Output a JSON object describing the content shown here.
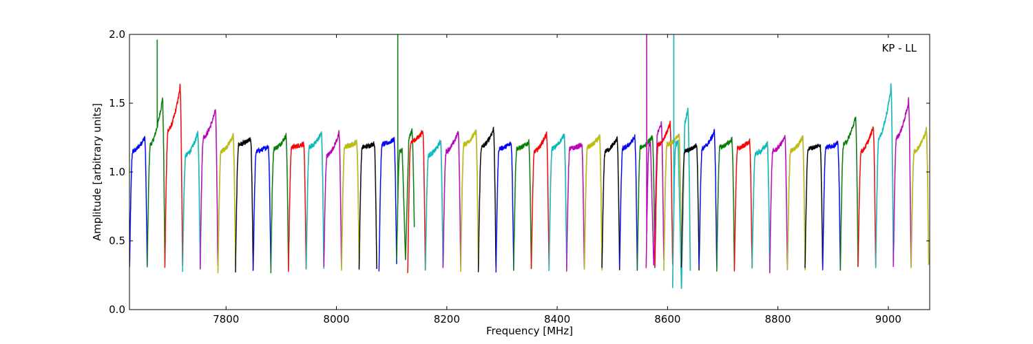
{
  "chart_data": {
    "type": "line",
    "title": "",
    "annotation": "KP - LL",
    "xlabel": "Frequency [MHz]",
    "ylabel": "Amplitude [arbitrary units]",
    "xlim": [
      7625,
      9075
    ],
    "ylim": [
      0.0,
      2.0
    ],
    "xticks": [
      7800,
      8000,
      8200,
      8400,
      8600,
      8800,
      9000
    ],
    "yticks": [
      0.0,
      0.5,
      1.0,
      1.5,
      2.0
    ],
    "xtick_labels": [
      "7800",
      "8000",
      "8200",
      "8400",
      "8600",
      "8800",
      "9000"
    ],
    "ytick_labels": [
      "0.0",
      "0.5",
      "1.0",
      "1.5",
      "2.0"
    ],
    "grid": false,
    "legend": "none",
    "channel_width_mhz": 32,
    "series": [
      {
        "start": 7625,
        "color": "#0000ff",
        "edge_low": 0.3,
        "edge_high": 0.31,
        "level": 1.15,
        "peak": 1.26
      },
      {
        "start": 7657,
        "color": "#008000",
        "edge_low": 0.3,
        "edge_high": 0.34,
        "level": 1.2,
        "peak": 1.55,
        "spike_x": 7675,
        "spike_y": 1.96
      },
      {
        "start": 7689,
        "color": "#ff0000",
        "edge_low": 0.31,
        "edge_high": 0.33,
        "level": 1.3,
        "peak": 1.63
      },
      {
        "start": 7721,
        "color": "#00bfbf",
        "edge_low": 0.29,
        "edge_high": 0.31,
        "level": 1.12,
        "peak": 1.29
      },
      {
        "start": 7753,
        "color": "#bf00bf",
        "edge_low": 0.3,
        "edge_high": 0.31,
        "level": 1.25,
        "peak": 1.46
      },
      {
        "start": 7785,
        "color": "#bfbf00",
        "edge_low": 0.27,
        "edge_high": 0.3,
        "level": 1.15,
        "peak": 1.27
      },
      {
        "start": 7817,
        "color": "#000000",
        "edge_low": 0.28,
        "edge_high": 0.3,
        "level": 1.2,
        "peak": 1.24
      },
      {
        "start": 7849,
        "color": "#0000ff",
        "edge_low": 0.28,
        "edge_high": 0.3,
        "level": 1.15,
        "peak": 1.19
      },
      {
        "start": 7881,
        "color": "#008000",
        "edge_low": 0.27,
        "edge_high": 0.29,
        "level": 1.17,
        "peak": 1.27
      },
      {
        "start": 7913,
        "color": "#ff0000",
        "edge_low": 0.29,
        "edge_high": 0.3,
        "level": 1.18,
        "peak": 1.21
      },
      {
        "start": 7945,
        "color": "#00bfbf",
        "edge_low": 0.29,
        "edge_high": 0.3,
        "level": 1.18,
        "peak": 1.29
      },
      {
        "start": 7977,
        "color": "#bf00bf",
        "edge_low": 0.3,
        "edge_high": 0.3,
        "level": 1.12,
        "peak": 1.29
      },
      {
        "start": 8009,
        "color": "#bfbf00",
        "edge_low": 0.29,
        "edge_high": 0.3,
        "level": 1.18,
        "peak": 1.22
      },
      {
        "start": 8041,
        "color": "#000000",
        "edge_low": 0.29,
        "edge_high": 0.3,
        "level": 1.18,
        "peak": 1.21
      },
      {
        "start": 8077,
        "color": "#0000ff",
        "edge_low": 0.29,
        "edge_high": 0.32,
        "level": 1.2,
        "peak": 1.24
      },
      {
        "start": 8109,
        "color": "#008000",
        "edge_low": 0.36,
        "edge_high": 0.6,
        "level": 1.15,
        "peak": 1.31,
        "spike_x": 8111,
        "spike_y": 2.0,
        "dip_x": 8125,
        "dip_y": 0.36
      },
      {
        "start": 8129,
        "color": "#ff0000",
        "edge_low": 0.26,
        "edge_high": 0.27,
        "level": 1.22,
        "peak": 1.3
      },
      {
        "start": 8161,
        "color": "#00bfbf",
        "edge_low": 0.29,
        "edge_high": 0.3,
        "level": 1.12,
        "peak": 1.23
      },
      {
        "start": 8193,
        "color": "#bf00bf",
        "edge_low": 0.29,
        "edge_high": 0.3,
        "level": 1.15,
        "peak": 1.3
      },
      {
        "start": 8225,
        "color": "#bfbf00",
        "edge_low": 0.29,
        "edge_high": 0.3,
        "level": 1.2,
        "peak": 1.3
      },
      {
        "start": 8257,
        "color": "#000000",
        "edge_low": 0.28,
        "edge_high": 0.3,
        "level": 1.18,
        "peak": 1.32
      },
      {
        "start": 8289,
        "color": "#0000ff",
        "edge_low": 0.28,
        "edge_high": 0.3,
        "level": 1.17,
        "peak": 1.21
      },
      {
        "start": 8321,
        "color": "#008000",
        "edge_low": 0.29,
        "edge_high": 0.3,
        "level": 1.17,
        "peak": 1.22
      },
      {
        "start": 8353,
        "color": "#ff0000",
        "edge_low": 0.29,
        "edge_high": 0.3,
        "level": 1.15,
        "peak": 1.29
      },
      {
        "start": 8385,
        "color": "#00bfbf",
        "edge_low": 0.28,
        "edge_high": 0.3,
        "level": 1.17,
        "peak": 1.28
      },
      {
        "start": 8417,
        "color": "#bf00bf",
        "edge_low": 0.29,
        "edge_high": 0.3,
        "level": 1.17,
        "peak": 1.2
      },
      {
        "start": 8449,
        "color": "#bfbf00",
        "edge_low": 0.29,
        "edge_high": 0.3,
        "level": 1.18,
        "peak": 1.26
      },
      {
        "start": 8481,
        "color": "#000000",
        "edge_low": 0.29,
        "edge_high": 0.3,
        "level": 1.15,
        "peak": 1.25
      },
      {
        "start": 8513,
        "color": "#0000ff",
        "edge_low": 0.29,
        "edge_high": 0.3,
        "level": 1.17,
        "peak": 1.26
      },
      {
        "start": 8545,
        "color": "#008000",
        "edge_low": 0.29,
        "edge_high": 0.3,
        "level": 1.18,
        "peak": 1.26
      },
      {
        "start": 8561,
        "color": "#bf00bf",
        "edge_low": 0.3,
        "edge_high": 0.35,
        "level": 1.2,
        "peak": 1.36,
        "spike_x": 8562,
        "spike_y": 2.0,
        "dip_x": 8575,
        "dip_y": 0.3
      },
      {
        "start": 8577,
        "color": "#ff0000",
        "edge_low": 0.3,
        "edge_high": 0.32,
        "level": 1.2,
        "peak": 1.36
      },
      {
        "start": 8593,
        "color": "#bfbf00",
        "edge_low": 0.28,
        "edge_high": 0.3,
        "level": 1.2,
        "peak": 1.27
      },
      {
        "start": 8609,
        "color": "#00bfbf",
        "edge_low": 0.15,
        "edge_high": 0.28,
        "level": 1.2,
        "peak": 1.47,
        "spike_x": 8611,
        "spike_y": 2.0,
        "dip_x": 8625,
        "dip_y": 0.15
      },
      {
        "start": 8625,
        "color": "#000000",
        "edge_low": 0.29,
        "edge_high": 0.3,
        "level": 1.15,
        "peak": 1.2
      },
      {
        "start": 8657,
        "color": "#0000ff",
        "edge_low": 0.29,
        "edge_high": 0.3,
        "level": 1.17,
        "peak": 1.3
      },
      {
        "start": 8689,
        "color": "#008000",
        "edge_low": 0.29,
        "edge_high": 0.3,
        "level": 1.18,
        "peak": 1.24
      },
      {
        "start": 8721,
        "color": "#ff0000",
        "edge_low": 0.29,
        "edge_high": 0.3,
        "level": 1.17,
        "peak": 1.23
      },
      {
        "start": 8753,
        "color": "#00bfbf",
        "edge_low": 0.29,
        "edge_high": 0.3,
        "level": 1.13,
        "peak": 1.21
      },
      {
        "start": 8785,
        "color": "#bf00bf",
        "edge_low": 0.28,
        "edge_high": 0.29,
        "level": 1.15,
        "peak": 1.26
      },
      {
        "start": 8817,
        "color": "#bfbf00",
        "edge_low": 0.29,
        "edge_high": 0.3,
        "level": 1.15,
        "peak": 1.26
      },
      {
        "start": 8849,
        "color": "#000000",
        "edge_low": 0.29,
        "edge_high": 0.3,
        "level": 1.17,
        "peak": 1.2
      },
      {
        "start": 8881,
        "color": "#0000ff",
        "edge_low": 0.29,
        "edge_high": 0.3,
        "level": 1.18,
        "peak": 1.21
      },
      {
        "start": 8913,
        "color": "#008000",
        "edge_low": 0.3,
        "edge_high": 0.31,
        "level": 1.2,
        "peak": 1.41
      },
      {
        "start": 8945,
        "color": "#ff0000",
        "edge_low": 0.3,
        "edge_high": 0.31,
        "level": 1.15,
        "peak": 1.34
      },
      {
        "start": 8977,
        "color": "#00bfbf",
        "edge_low": 0.31,
        "edge_high": 0.33,
        "level": 1.25,
        "peak": 1.63
      },
      {
        "start": 9009,
        "color": "#bf00bf",
        "edge_low": 0.32,
        "edge_high": 0.33,
        "level": 1.25,
        "peak": 1.53
      },
      {
        "start": 9041,
        "color": "#bfbf00",
        "edge_low": 0.3,
        "edge_high": 0.31,
        "level": 1.15,
        "peak": 1.31
      }
    ]
  }
}
